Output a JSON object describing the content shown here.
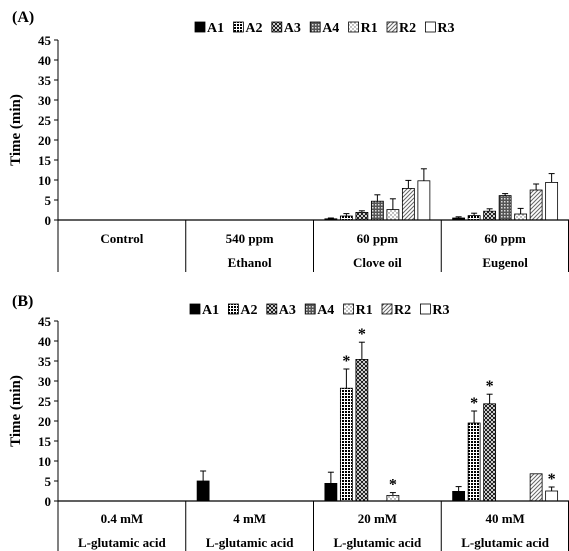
{
  "chart_data": [
    {
      "panel_label": "(A)",
      "type": "bar",
      "ylabel": "Time (min)",
      "ylim": [
        0,
        45
      ],
      "yticks": [
        "0",
        "5",
        "10",
        "15",
        "20",
        "25",
        "30",
        "35",
        "40",
        "45"
      ],
      "legend_position": "top-right",
      "groups": [
        {
          "line1": "Control",
          "line2": ""
        },
        {
          "line1": "540 ppm",
          "line2": "Ethanol"
        },
        {
          "line1": "60 ppm",
          "line2": "Clove oil"
        },
        {
          "line1": "60 ppm",
          "line2": "Eugenol"
        }
      ],
      "series": [
        {
          "name": "A1",
          "fill": "black",
          "values": [
            null,
            null,
            0.3,
            0.5
          ],
          "errors": [
            null,
            null,
            0.2,
            0.3
          ],
          "stars": [
            false,
            false,
            false,
            false
          ]
        },
        {
          "name": "A2",
          "fill": "dots",
          "values": [
            null,
            null,
            1.0,
            1.1
          ],
          "errors": [
            null,
            null,
            0.6,
            0.6
          ],
          "stars": [
            false,
            false,
            false,
            false
          ]
        },
        {
          "name": "A3",
          "fill": "cross",
          "values": [
            null,
            null,
            1.9,
            2.2
          ],
          "errors": [
            null,
            null,
            0.4,
            0.6
          ],
          "stars": [
            false,
            false,
            false,
            false
          ]
        },
        {
          "name": "A4",
          "fill": "grid",
          "values": [
            null,
            null,
            4.7,
            6.1
          ],
          "errors": [
            null,
            null,
            1.6,
            0.5
          ],
          "stars": [
            false,
            false,
            false,
            false
          ]
        },
        {
          "name": "R1",
          "fill": "lightdots",
          "values": [
            null,
            null,
            2.6,
            1.5
          ],
          "errors": [
            null,
            null,
            2.7,
            1.4
          ],
          "stars": [
            false,
            false,
            false,
            false
          ]
        },
        {
          "name": "R2",
          "fill": "diag",
          "values": [
            null,
            null,
            7.9,
            7.5
          ],
          "errors": [
            null,
            null,
            2.0,
            1.5
          ],
          "stars": [
            false,
            false,
            false,
            false
          ]
        },
        {
          "name": "R3",
          "fill": "white",
          "values": [
            null,
            null,
            9.8,
            9.4
          ],
          "errors": [
            null,
            null,
            3.0,
            2.2
          ],
          "stars": [
            false,
            false,
            false,
            false
          ]
        }
      ]
    },
    {
      "panel_label": "(B)",
      "type": "bar",
      "ylabel": "Time (min)",
      "ylim": [
        0,
        45
      ],
      "yticks": [
        "0",
        "5",
        "10",
        "15",
        "20",
        "25",
        "30",
        "35",
        "40",
        "45"
      ],
      "legend_position": "top-right",
      "groups": [
        {
          "line1": "0.4 mM",
          "line2": "L-glutamic acid"
        },
        {
          "line1": "4 mM",
          "line2": "L-glutamic acid"
        },
        {
          "line1": "20 mM",
          "line2": "L-glutamic acid"
        },
        {
          "line1": "40 mM",
          "line2": "L-glutamic acid"
        }
      ],
      "series": [
        {
          "name": "A1",
          "fill": "black",
          "values": [
            null,
            5.0,
            4.4,
            2.4
          ],
          "errors": [
            null,
            2.5,
            2.8,
            1.2
          ],
          "stars": [
            false,
            false,
            false,
            false
          ]
        },
        {
          "name": "A2",
          "fill": "dots",
          "values": [
            null,
            null,
            28.2,
            19.5
          ],
          "errors": [
            null,
            null,
            4.8,
            3.0
          ],
          "stars": [
            false,
            false,
            true,
            true
          ]
        },
        {
          "name": "A3",
          "fill": "cross",
          "values": [
            null,
            null,
            35.4,
            24.3
          ],
          "errors": [
            null,
            null,
            4.3,
            2.4
          ],
          "stars": [
            false,
            false,
            true,
            true
          ]
        },
        {
          "name": "A4",
          "fill": "grid",
          "values": [
            null,
            null,
            null,
            null
          ],
          "errors": [
            null,
            null,
            null,
            null
          ],
          "stars": [
            false,
            false,
            false,
            false
          ]
        },
        {
          "name": "R1",
          "fill": "lightdots",
          "values": [
            null,
            null,
            1.4,
            null
          ],
          "errors": [
            null,
            null,
            0.7,
            null
          ],
          "stars": [
            false,
            false,
            true,
            false
          ]
        },
        {
          "name": "R2",
          "fill": "diag",
          "values": [
            null,
            null,
            null,
            6.8
          ],
          "errors": [
            null,
            null,
            null,
            null
          ],
          "stars": [
            false,
            false,
            false,
            false
          ]
        },
        {
          "name": "R3",
          "fill": "white",
          "values": [
            null,
            null,
            null,
            2.5
          ],
          "errors": [
            null,
            null,
            null,
            1.0
          ],
          "stars": [
            false,
            false,
            false,
            true
          ]
        }
      ],
      "star_symbol": "*"
    }
  ]
}
